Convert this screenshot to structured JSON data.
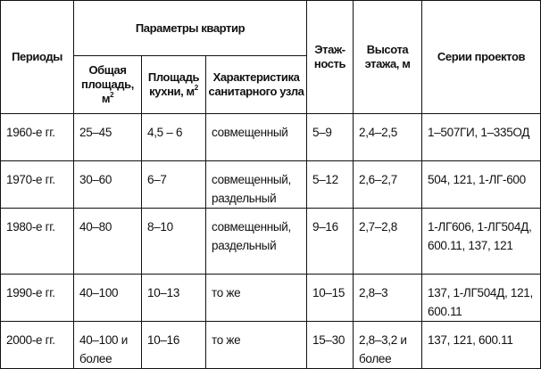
{
  "header": {
    "periods": "Периоды",
    "group": "Параметры квартир",
    "total_area": "Общая площадь, м",
    "kitchen_area": "Площадь кухни, м",
    "sq": "2",
    "sanitary": "Характеристика санитарного узла",
    "floors": "Этаж-ность",
    "height": "Высота этажа, м",
    "series": "Серии проектов"
  },
  "rows": [
    {
      "period": "1960-е гг.",
      "total": "25–45",
      "kitchen": "4,5 – 6",
      "sanitary": "совмещенный",
      "floors": "5–9",
      "height": "2,4–2,5",
      "series": "1–507ГИ, 1–335ОД"
    },
    {
      "period": "1970-е гг.",
      "total": "30–60",
      "kitchen": "6–7",
      "sanitary": "совмещенный, раздельный",
      "floors": "5–12",
      "height": "2,6–2,7",
      "series": "504, 121, 1-ЛГ-600"
    },
    {
      "period": "1980-е гг.",
      "total": "40–80",
      "kitchen": "8–10",
      "sanitary": "совмещенный, раздельный",
      "floors": "9–16",
      "height": "2,7–2,8",
      "series": "1-ЛГ606, 1-ЛГ504Д, 600.11, 137, 121"
    },
    {
      "period": "1990-е гг.",
      "total": "40–100",
      "kitchen": "10–13",
      "sanitary": "то же",
      "floors": "10–15",
      "height": "2,8–3",
      "series": "137, 1-ЛГ504Д, 121, 600.11"
    },
    {
      "period": "2000-е гг.",
      "total": "40–100 и более",
      "kitchen": "10–16",
      "sanitary": "то же",
      "floors": "15–30",
      "height": "2,8–3,2 и более",
      "series": "137, 121, 600.11"
    }
  ]
}
